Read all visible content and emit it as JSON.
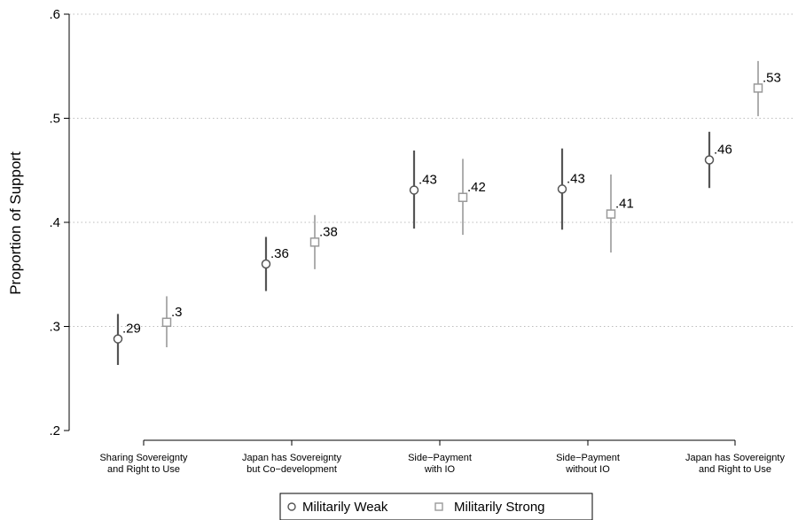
{
  "chart_data": {
    "type": "scatter",
    "ylabel": "Proportion of Support",
    "ylim": [
      0.2,
      0.6
    ],
    "yticks": [
      {
        "value": 0.2,
        "label": ".2"
      },
      {
        "value": 0.3,
        "label": ".3"
      },
      {
        "value": 0.4,
        "label": ".4"
      },
      {
        "value": 0.5,
        "label": ".5"
      },
      {
        "value": 0.6,
        "label": ".6"
      }
    ],
    "grid": "horizontal dotted",
    "categories": [
      [
        "Sharing Sovereignty",
        "and Right to Use"
      ],
      [
        "Japan has Sovereignty",
        "but Co−development"
      ],
      [
        "Side−Payment",
        "with IO"
      ],
      [
        "Side−Payment",
        "without IO"
      ],
      [
        "Japan has Sovereignty",
        "and Right to Use"
      ]
    ],
    "legend_position": "bottom",
    "series": [
      {
        "name": "Militarily Weak",
        "marker": "circle",
        "color": "#555555",
        "values": [
          0.288,
          0.36,
          0.431,
          0.432,
          0.46
        ],
        "ci_low": [
          0.263,
          0.334,
          0.394,
          0.393,
          0.433
        ],
        "ci_high": [
          0.312,
          0.386,
          0.469,
          0.471,
          0.487
        ],
        "labels": [
          ".29",
          ".36",
          ".43",
          ".43",
          ".46"
        ]
      },
      {
        "name": "Militarily Strong",
        "marker": "square",
        "color": "#999999",
        "values": [
          0.304,
          0.381,
          0.424,
          0.408,
          0.529
        ],
        "ci_low": [
          0.28,
          0.355,
          0.388,
          0.371,
          0.502
        ],
        "ci_high": [
          0.329,
          0.407,
          0.461,
          0.446,
          0.555
        ],
        "labels": [
          ".3",
          ".38",
          ".42",
          ".41",
          ".53"
        ]
      }
    ]
  }
}
